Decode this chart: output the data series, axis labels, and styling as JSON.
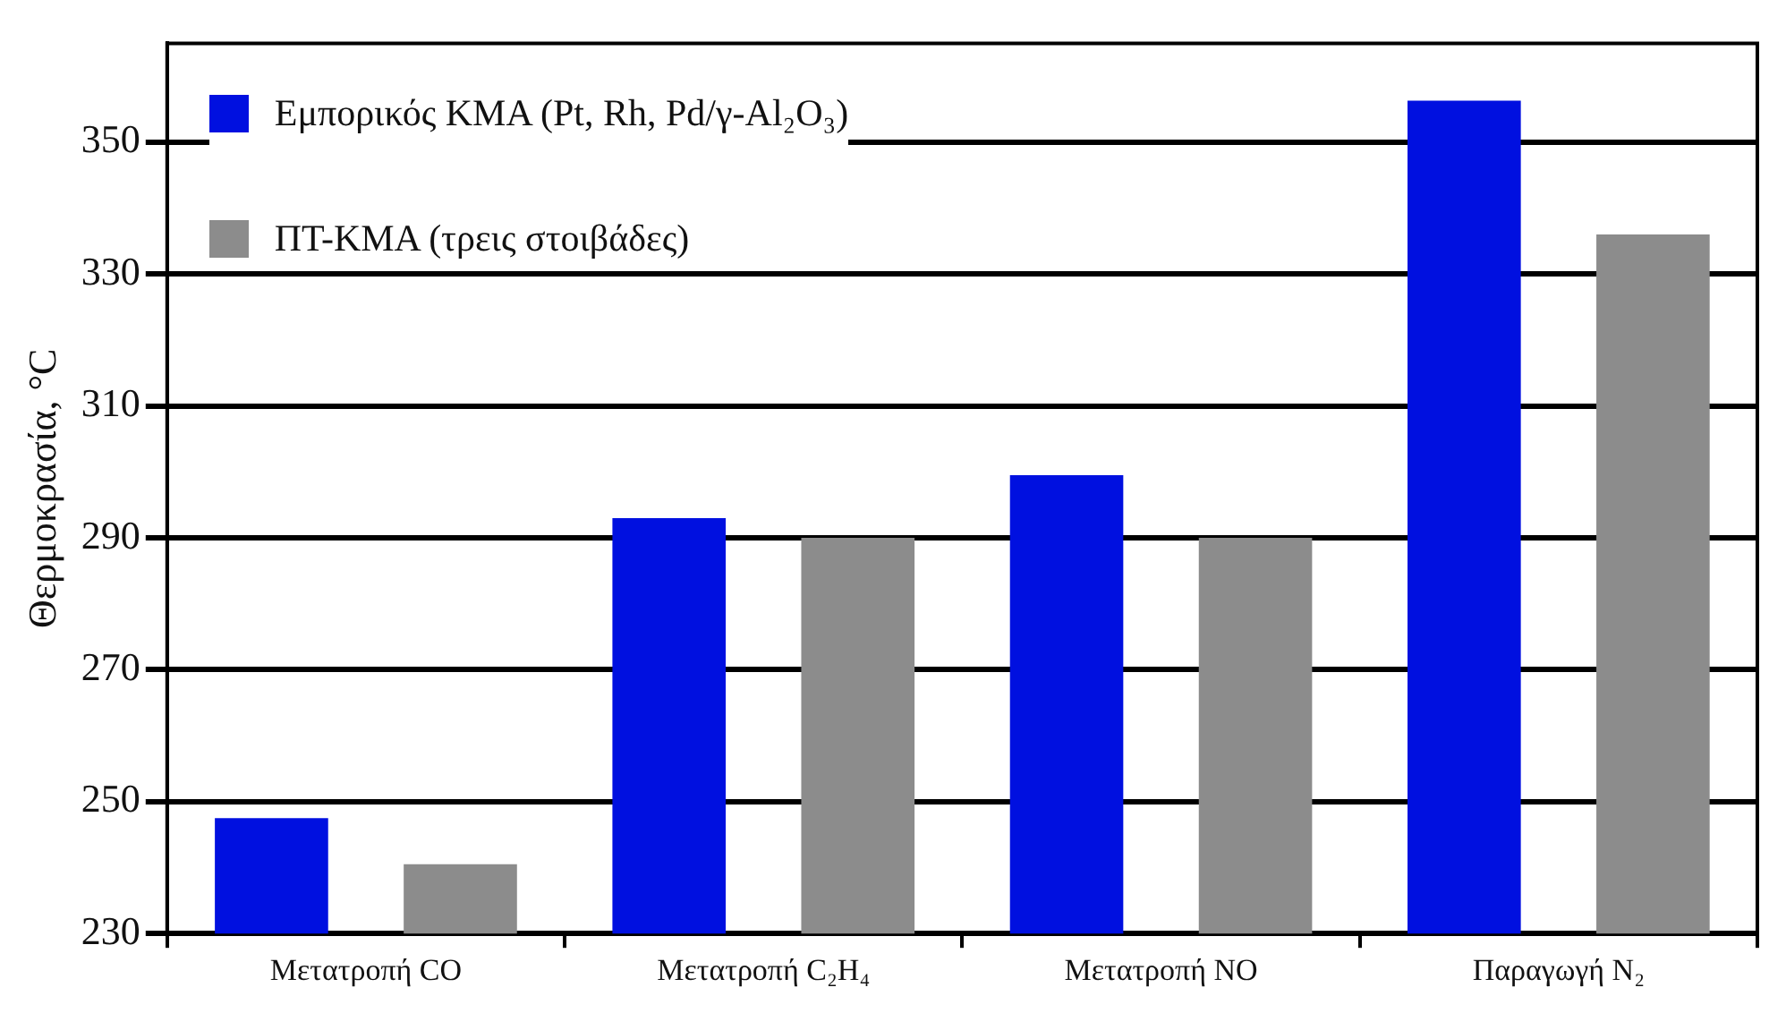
{
  "chart_data": {
    "type": "bar",
    "ylabel": "Θερμοκρασία, °C",
    "categories": [
      "Μετατροπή CO",
      "Μετατροπή C₂H₄",
      "Μετατροπή NO",
      "Παραγωγή N₂"
    ],
    "series": [
      {
        "name": "Εμπορικός ΚΜΑ (Pt, Rh, Pd/γ-Al₂O₃)",
        "color": "#0010e0",
        "values": [
          247.5,
          293,
          299.5,
          356.3
        ]
      },
      {
        "name": "ΠΤ-ΚΜΑ (τρεις στοιβάδες)",
        "color": "#8c8c8c",
        "values": [
          240.5,
          290,
          290,
          336
        ]
      }
    ],
    "ylim": [
      230,
      365
    ],
    "yticks": [
      230,
      250,
      270,
      290,
      310,
      330,
      350
    ],
    "grid": "y",
    "legend": "top left"
  }
}
